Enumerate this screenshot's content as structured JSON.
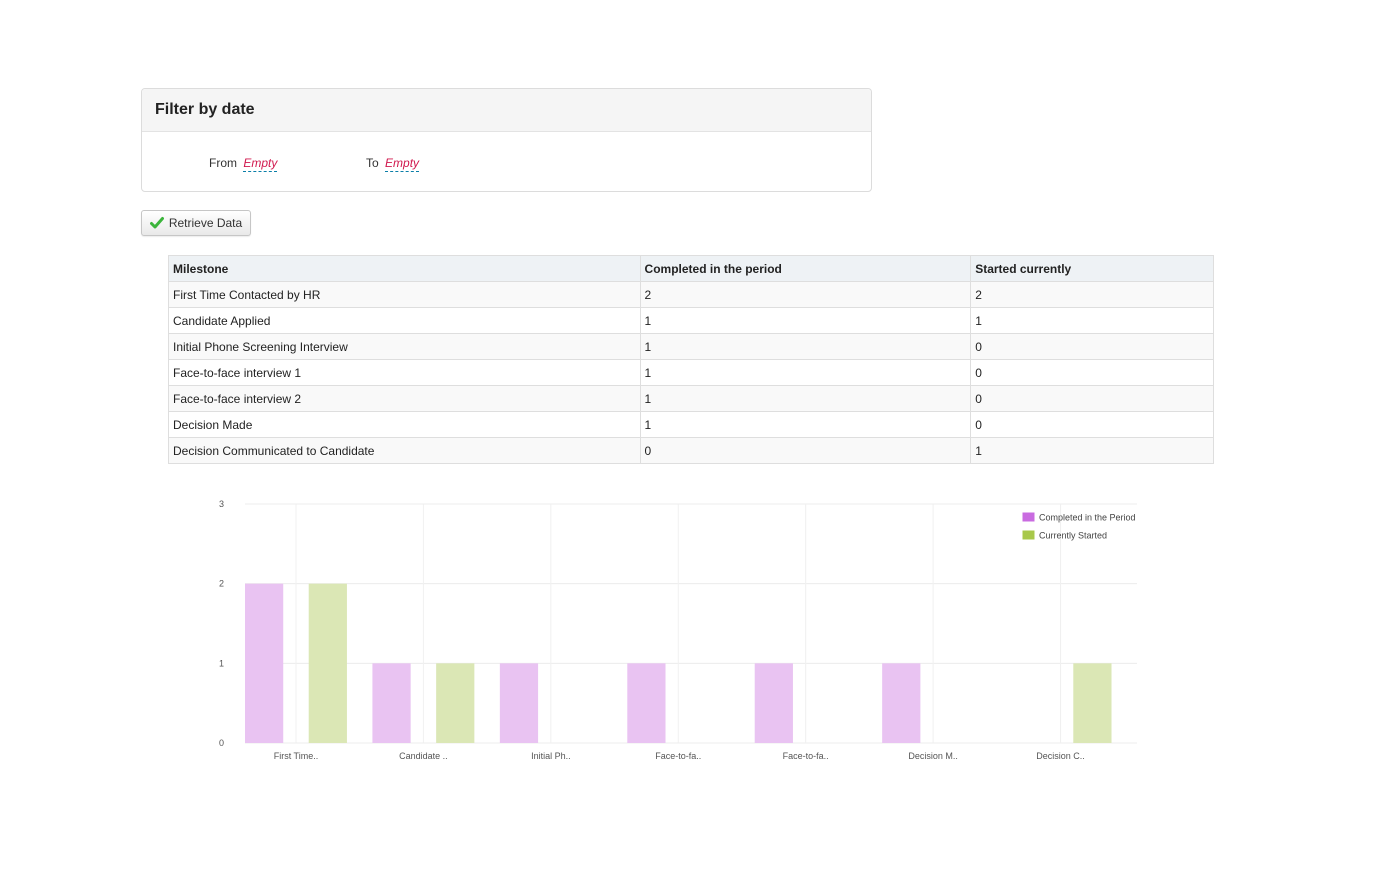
{
  "filter": {
    "title": "Filter by date",
    "from_label": "From",
    "from_value": "Empty",
    "to_label": "To",
    "to_value": "Empty"
  },
  "retrieve_button": {
    "label": "Retrieve Data",
    "icon": "check-icon"
  },
  "table": {
    "headers": [
      "Milestone",
      "Completed in the period",
      "Started currently"
    ],
    "rows": [
      [
        "First Time Contacted by HR",
        "2",
        "2"
      ],
      [
        "Candidate Applied",
        "1",
        "1"
      ],
      [
        "Initial Phone Screening Interview",
        "1",
        "0"
      ],
      [
        "Face-to-face interview 1",
        "1",
        "0"
      ],
      [
        "Face-to-face interview 2",
        "1",
        "0"
      ],
      [
        "Decision Made",
        "1",
        "0"
      ],
      [
        "Decision Communicated to Candidate",
        "0",
        "1"
      ]
    ]
  },
  "chart_data": {
    "type": "bar",
    "categories": [
      "First Time..",
      "Candidate ..",
      "Initial Ph..",
      "Face-to-fa..",
      "Face-to-fa..",
      "Decision M..",
      "Decision C.."
    ],
    "series": [
      {
        "name": "Completed in the Period",
        "values": [
          2,
          1,
          1,
          1,
          1,
          1,
          0
        ],
        "color": "#e9c3f2",
        "legend_color": "#c96be0"
      },
      {
        "name": "Currently Started",
        "values": [
          2,
          1,
          0,
          0,
          0,
          0,
          1
        ],
        "color": "#dbe7b5",
        "legend_color": "#a8c84a"
      }
    ],
    "yticks": [
      "0",
      "1",
      "2",
      "3"
    ],
    "ylim": [
      0,
      3
    ],
    "grid": true,
    "legend_position": "top-right"
  }
}
